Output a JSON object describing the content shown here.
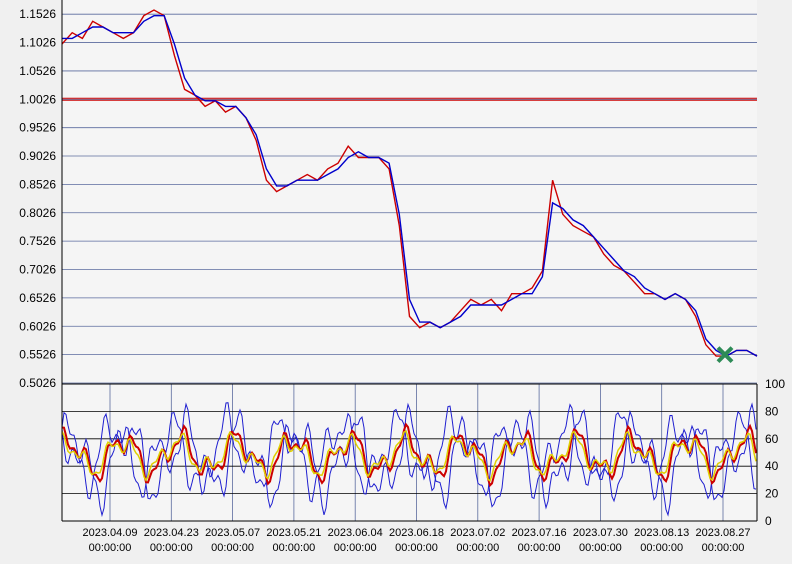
{
  "chart_data": [
    {
      "type": "line",
      "panel": "price",
      "y_ticks": [
        "1.1526",
        "1.1026",
        "1.0526",
        "1.0026",
        "0.9526",
        "0.9026",
        "0.8526",
        "0.8026",
        "0.7526",
        "0.7026",
        "0.6526",
        "0.6026",
        "0.5526",
        "0.5026"
      ],
      "ylim": [
        0.5026,
        1.1776
      ],
      "x_ticks": [
        [
          "2023.04.09",
          "00:00:00"
        ],
        [
          "2023.04.23",
          "00:00:00"
        ],
        [
          "2023.05.07",
          "00:00:00"
        ],
        [
          "2023.05.21",
          "00:00:00"
        ],
        [
          "2023.06.04",
          "00:00:00"
        ],
        [
          "2023.06.18",
          "00:00:00"
        ],
        [
          "2023.07.02",
          "00:00:00"
        ],
        [
          "2023.07.16",
          "00:00:00"
        ],
        [
          "2023.07.30",
          "00:00:00"
        ],
        [
          "2023.08.13",
          "00:00:00"
        ],
        [
          "2023.08.27",
          "00:00:00"
        ]
      ],
      "reference_level": 1.0026,
      "series": [
        {
          "color": "#cc0000",
          "values": [
            1.1,
            1.12,
            1.11,
            1.14,
            1.13,
            1.12,
            1.11,
            1.12,
            1.15,
            1.16,
            1.15,
            1.08,
            1.02,
            1.01,
            0.99,
            1.0,
            0.98,
            0.99,
            0.97,
            0.93,
            0.86,
            0.84,
            0.85,
            0.86,
            0.87,
            0.86,
            0.88,
            0.89,
            0.92,
            0.9,
            0.9,
            0.9,
            0.88,
            0.78,
            0.62,
            0.6,
            0.61,
            0.6,
            0.61,
            0.63,
            0.65,
            0.64,
            0.65,
            0.63,
            0.66,
            0.66,
            0.67,
            0.7,
            0.86,
            0.8,
            0.78,
            0.77,
            0.76,
            0.73,
            0.71,
            0.7,
            0.68,
            0.66,
            0.66,
            0.65,
            0.66,
            0.65,
            0.62,
            0.57,
            0.55,
            0.55,
            0.56,
            0.56,
            0.55
          ]
        },
        {
          "color": "#0000cc",
          "values": [
            1.11,
            1.11,
            1.12,
            1.13,
            1.13,
            1.12,
            1.12,
            1.12,
            1.14,
            1.15,
            1.15,
            1.1,
            1.04,
            1.01,
            1.0,
            1.0,
            0.99,
            0.99,
            0.97,
            0.94,
            0.88,
            0.85,
            0.85,
            0.86,
            0.86,
            0.86,
            0.87,
            0.88,
            0.9,
            0.91,
            0.9,
            0.9,
            0.89,
            0.8,
            0.65,
            0.61,
            0.61,
            0.6,
            0.61,
            0.62,
            0.64,
            0.64,
            0.64,
            0.64,
            0.65,
            0.66,
            0.66,
            0.69,
            0.82,
            0.81,
            0.79,
            0.78,
            0.76,
            0.74,
            0.72,
            0.7,
            0.69,
            0.67,
            0.66,
            0.65,
            0.66,
            0.65,
            0.63,
            0.58,
            0.56,
            0.55,
            0.56,
            0.56,
            0.55
          ]
        }
      ]
    },
    {
      "type": "line",
      "panel": "oscillator",
      "y_ticks": [
        "100",
        "80",
        "60",
        "40",
        "20",
        "0"
      ],
      "ylim": [
        0,
        100
      ]
    }
  ]
}
